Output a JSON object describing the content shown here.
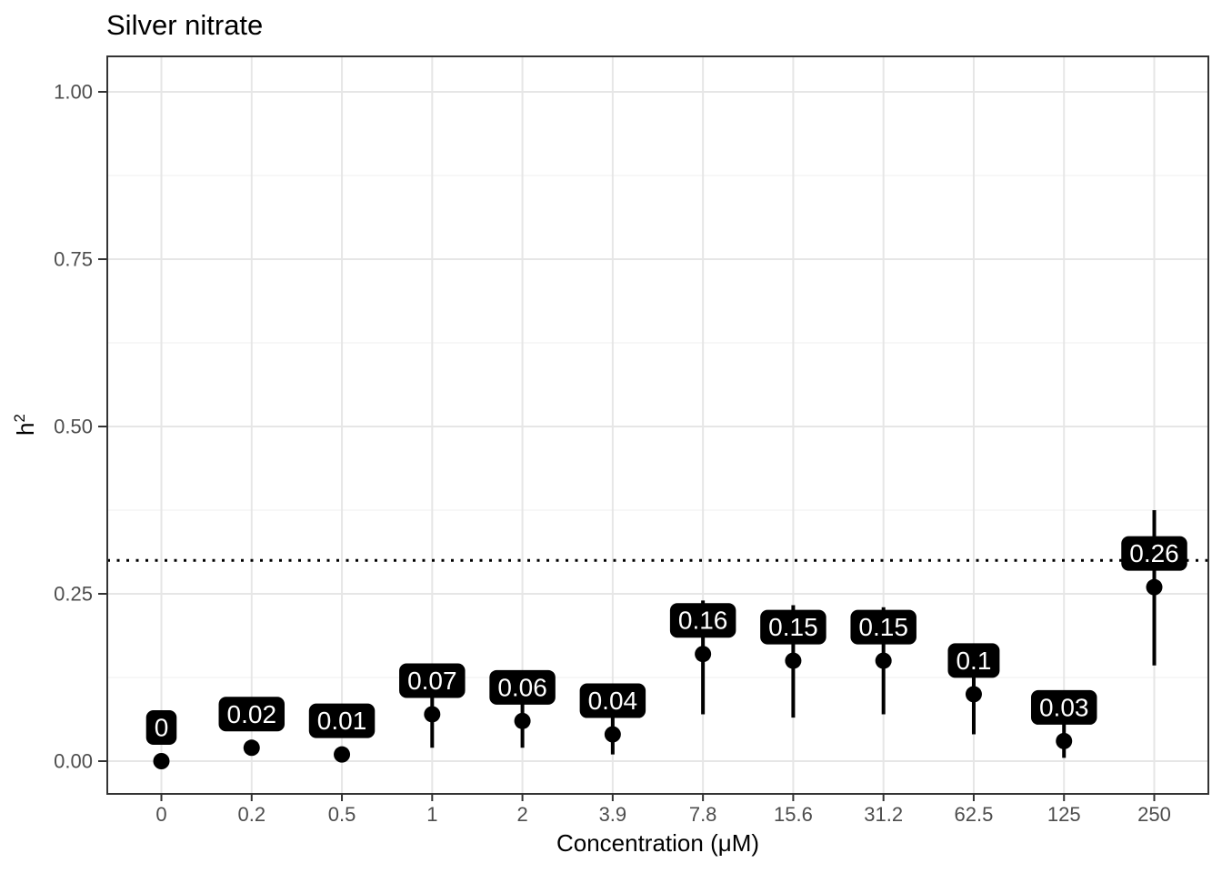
{
  "chart_data": {
    "type": "pointrange",
    "title": "Silver nitrate",
    "xlabel": "Concentration (μM)",
    "ylabel": "h²",
    "ylabel_base": "h",
    "ylabel_sup": "2",
    "categories": [
      "0",
      "0.2",
      "0.5",
      "1",
      "2",
      "3.9",
      "7.8",
      "15.6",
      "31.2",
      "62.5",
      "125",
      "250"
    ],
    "points": [
      {
        "x": "0",
        "label": "0",
        "value": 0,
        "ymin": 0,
        "ymax": 0
      },
      {
        "x": "0.2",
        "label": "0.02",
        "value": 0.02,
        "ymin": 0.02,
        "ymax": 0.02
      },
      {
        "x": "0.5",
        "label": "0.01",
        "value": 0.01,
        "ymin": 0.01,
        "ymax": 0.01
      },
      {
        "x": "1",
        "label": "0.07",
        "value": 0.07,
        "ymin": 0.02,
        "ymax": 0.12
      },
      {
        "x": "2",
        "label": "0.06",
        "value": 0.06,
        "ymin": 0.02,
        "ymax": 0.11
      },
      {
        "x": "3.9",
        "label": "0.04",
        "value": 0.04,
        "ymin": 0.01,
        "ymax": 0.09
      },
      {
        "x": "7.8",
        "label": "0.16",
        "value": 0.16,
        "ymin": 0.07,
        "ymax": 0.24
      },
      {
        "x": "15.6",
        "label": "0.15",
        "value": 0.15,
        "ymin": 0.065,
        "ymax": 0.233
      },
      {
        "x": "31.2",
        "label": "0.15",
        "value": 0.15,
        "ymin": 0.07,
        "ymax": 0.23
      },
      {
        "x": "62.5",
        "label": "0.1",
        "value": 0.1,
        "ymin": 0.04,
        "ymax": 0.16
      },
      {
        "x": "125",
        "label": "0.03",
        "value": 0.03,
        "ymin": 0.005,
        "ymax": 0.09
      },
      {
        "x": "250",
        "label": "0.26",
        "value": 0.26,
        "ymin": 0.143,
        "ymax": 0.375
      }
    ],
    "y_axis": {
      "tick_labels": [
        "0.00",
        "0.25",
        "0.50",
        "0.75",
        "1.00"
      ],
      "tick_values": [
        0,
        0.25,
        0.5,
        0.75,
        1
      ],
      "minor_values": [
        0.125,
        0.375,
        0.625,
        0.875
      ],
      "range": [
        0,
        1
      ]
    },
    "reference_line": {
      "y": 0.3,
      "style": "dotted"
    },
    "grid": true,
    "legend": false,
    "colors": {
      "point": "#000000",
      "error_bar": "#000000",
      "label_bg": "#000000",
      "label_text": "#ffffff",
      "grid_major": "#e6e6e6",
      "grid_minor": "#f2f2f2",
      "axis_text": "#4d4d4d",
      "tick_mark": "#333333",
      "panel_border": "#333333",
      "reference_line": "#000000",
      "background": "#ffffff"
    }
  }
}
